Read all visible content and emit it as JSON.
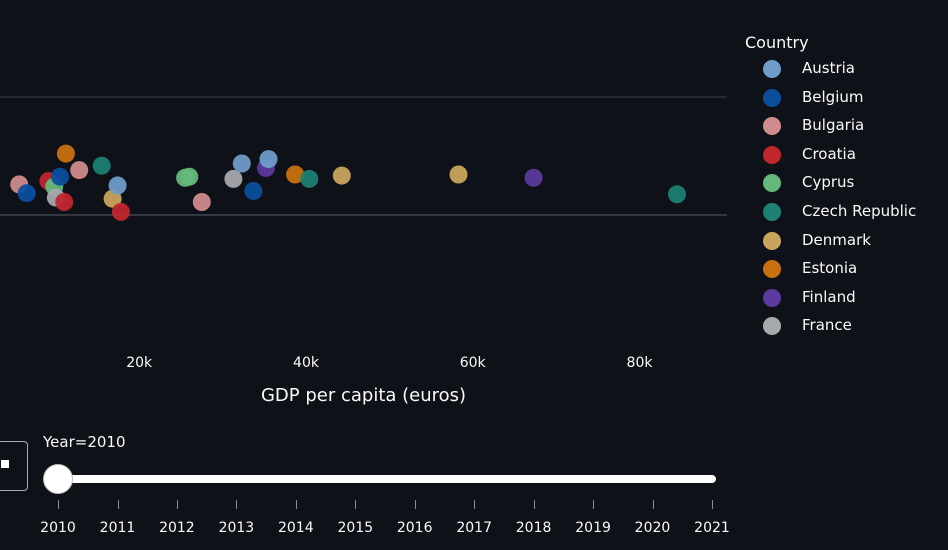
{
  "chart_data": {
    "type": "scatter",
    "xlabel": "GDP per capita (euros)",
    "x_ticks": [
      "20k",
      "40k",
      "60k",
      "80k"
    ],
    "x_tick_values": [
      20000,
      40000,
      60000,
      80000
    ],
    "xlim": [
      3300,
      90500
    ],
    "legend_title": "Country",
    "legend": [
      {
        "name": "Austria",
        "color": "#6f9cc9"
      },
      {
        "name": "Belgium",
        "color": "#0b4f9c"
      },
      {
        "name": "Bulgaria",
        "color": "#cf8b8b"
      },
      {
        "name": "Croatia",
        "color": "#c1272d"
      },
      {
        "name": "Cyprus",
        "color": "#63b87a"
      },
      {
        "name": "Czech Republic",
        "color": "#1e8072"
      },
      {
        "name": "Denmark",
        "color": "#c9a45c"
      },
      {
        "name": "Estonia",
        "color": "#c8700f"
      },
      {
        "name": "Finland",
        "color": "#5b3a9d"
      },
      {
        "name": "France",
        "color": "#a7a9ad"
      }
    ],
    "points": [
      {
        "x": 5600,
        "y": 0.26,
        "color": "#cf8b8b"
      },
      {
        "x": 6500,
        "y": 0.18,
        "color": "#0b4f9c"
      },
      {
        "x": 9100,
        "y": 0.29,
        "color": "#c1272d"
      },
      {
        "x": 9800,
        "y": 0.24,
        "color": "#63b87a"
      },
      {
        "x": 10000,
        "y": 0.14,
        "color": "#a7a9ad"
      },
      {
        "x": 10500,
        "y": 0.33,
        "color": "#0b4f9c"
      },
      {
        "x": 11200,
        "y": 0.54,
        "color": "#c8700f"
      },
      {
        "x": 11000,
        "y": 0.1,
        "color": "#c1272d"
      },
      {
        "x": 12800,
        "y": 0.39,
        "color": "#cf8b8b"
      },
      {
        "x": 15500,
        "y": 0.43,
        "color": "#1e8072"
      },
      {
        "x": 16800,
        "y": 0.13,
        "color": "#c9a45c"
      },
      {
        "x": 17400,
        "y": 0.25,
        "color": "#6f9cc9"
      },
      {
        "x": 17800,
        "y": 0.01,
        "color": "#c1272d"
      },
      {
        "x": 25500,
        "y": 0.32,
        "color": "#63b87a"
      },
      {
        "x": 26000,
        "y": 0.33,
        "color": "#63b87a"
      },
      {
        "x": 27500,
        "y": 0.1,
        "color": "#cf8b8b"
      },
      {
        "x": 31300,
        "y": 0.31,
        "color": "#a7a9ad"
      },
      {
        "x": 32300,
        "y": 0.45,
        "color": "#6f9cc9"
      },
      {
        "x": 33700,
        "y": 0.2,
        "color": "#0b4f9c"
      },
      {
        "x": 35200,
        "y": 0.41,
        "color": "#5b3a9d"
      },
      {
        "x": 35500,
        "y": 0.49,
        "color": "#6f9cc9"
      },
      {
        "x": 38700,
        "y": 0.35,
        "color": "#c8700f"
      },
      {
        "x": 40400,
        "y": 0.31,
        "color": "#1e8072"
      },
      {
        "x": 44300,
        "y": 0.34,
        "color": "#c9a45c"
      },
      {
        "x": 58300,
        "y": 0.35,
        "color": "#c9a45c"
      },
      {
        "x": 67300,
        "y": 0.32,
        "color": "#5b3a9d"
      },
      {
        "x": 84500,
        "y": 0.17,
        "color": "#1e8072"
      }
    ],
    "grid": true,
    "background": "#0e1117",
    "grid_color": "#3a3f4b"
  },
  "slider": {
    "label": "Year=2010",
    "current": 2010,
    "years": [
      "2010",
      "2011",
      "2012",
      "2013",
      "2014",
      "2015",
      "2016",
      "2017",
      "2018",
      "2019",
      "2020",
      "2021"
    ]
  }
}
